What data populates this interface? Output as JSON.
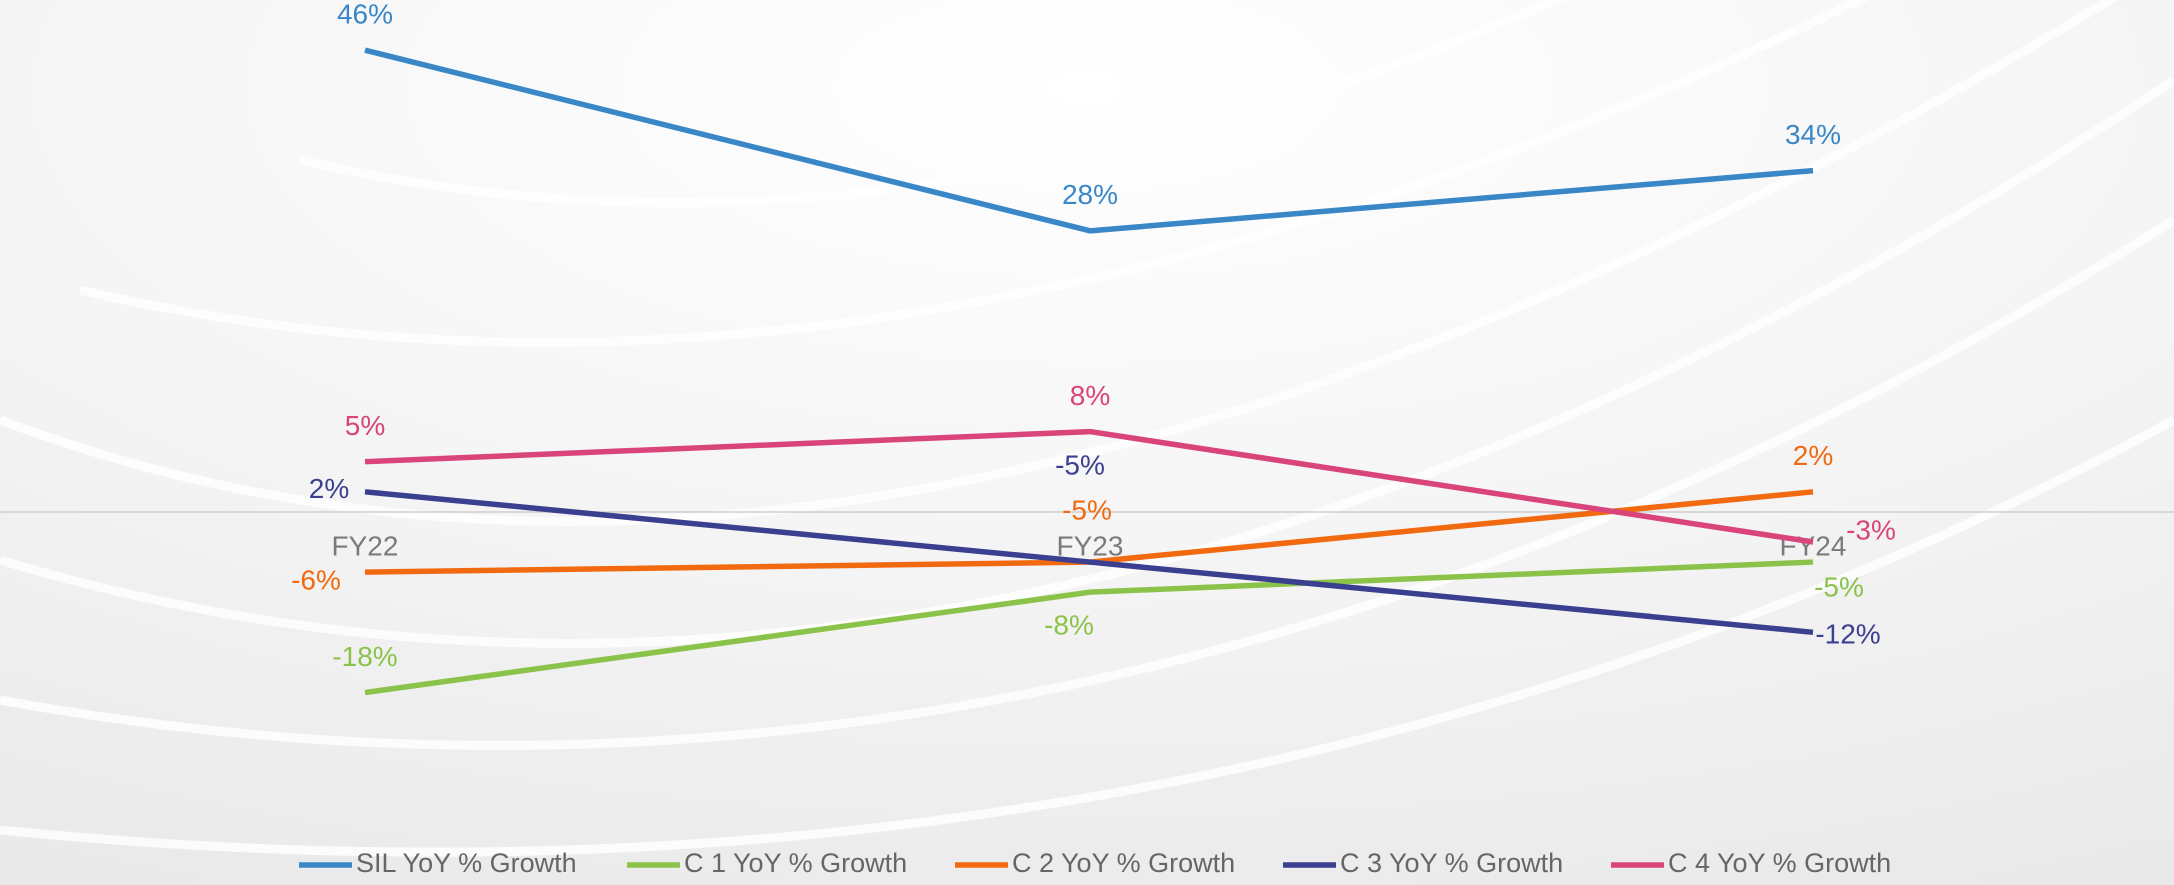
{
  "chart_data": {
    "type": "line",
    "categories": [
      "FY22",
      "FY23",
      "FY24"
    ],
    "ylim": [
      -30,
      50
    ],
    "series": [
      {
        "name": "SIL YoY % Growth",
        "color": "#3a87c8",
        "values": [
          46,
          28,
          34
        ],
        "value_labels": [
          "46%",
          "28%",
          "34%"
        ]
      },
      {
        "name": "C 1 YoY % Growth",
        "color": "#8bc34a",
        "values": [
          -18,
          -8,
          -5
        ],
        "value_labels": [
          "-18%",
          "-8%",
          "-5%"
        ]
      },
      {
        "name": "C 2 YoY % Growth",
        "color": "#f26a10",
        "values": [
          -6,
          -5,
          2
        ],
        "value_labels": [
          "-6%",
          "-5%",
          "2%"
        ]
      },
      {
        "name": "C 3 YoY % Growth",
        "color": "#3b3f8f",
        "values": [
          2,
          -5,
          -12
        ],
        "value_labels": [
          "2%",
          "-5%",
          "-12%"
        ]
      },
      {
        "name": "C 4 YoY % Growth",
        "color": "#d9457a",
        "values": [
          5,
          8,
          -3
        ],
        "value_labels": [
          "5%",
          "8%",
          "-3%"
        ]
      }
    ]
  }
}
